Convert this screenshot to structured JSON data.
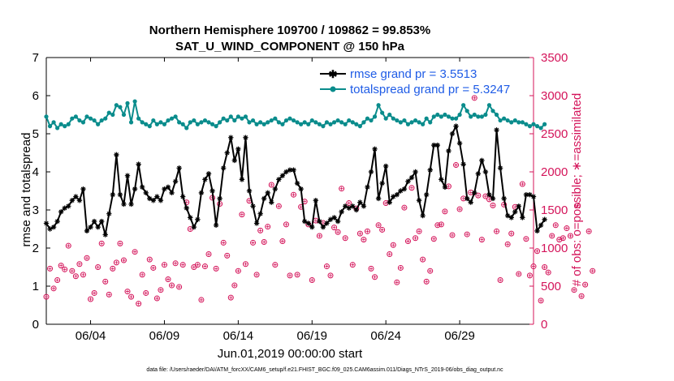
{
  "chart_data": {
    "type": "line",
    "title": "Northern Hemisphere 109700 / 109862 = 99.853%",
    "subtitle": "SAT_U_WIND_COMPONENT @ 150 hPa",
    "xlabel": "Jun.01,2019 00:00:00 start",
    "ylabel_left": "rmse and totalspread",
    "ylabel_right": "# of obs: o=possible; ∗=assimilated",
    "footer": "data file: /Users/raeder/DAI/ATM_forcXX/CAM6_setup/f.e21.FHIST_BGC.f09_025.CAM6assim.011/Diags_NTrS_2019-06/obs_diag_output.nc",
    "xlim": [
      1,
      34
    ],
    "ylim_left": [
      0,
      7
    ],
    "ylim_right": [
      0,
      3500
    ],
    "xticks": [
      {
        "x": 4,
        "label": "06/04"
      },
      {
        "x": 9,
        "label": "06/09"
      },
      {
        "x": 14,
        "label": "06/14"
      },
      {
        "x": 19,
        "label": "06/19"
      },
      {
        "x": 24,
        "label": "06/24"
      },
      {
        "x": 29,
        "label": "06/29"
      }
    ],
    "yticks_left": [
      "0",
      "1",
      "2",
      "3",
      "4",
      "5",
      "6",
      "7"
    ],
    "yticks_right": [
      "0",
      "500",
      "1000",
      "1500",
      "2000",
      "2500",
      "3000",
      "3500"
    ],
    "colors": {
      "rmse": "#000000",
      "spread": "#0a8c8c",
      "obs": "#d4145a",
      "legend_text": "#1f5ce6",
      "axis": "#000000"
    },
    "series": [
      {
        "name": "rmse grand pr = 3.5513",
        "axis": "left",
        "x_start": 1,
        "x_step": 0.25,
        "values": [
          2.65,
          2.5,
          2.55,
          2.7,
          2.95,
          3.05,
          3.1,
          3.25,
          3.35,
          3.25,
          3.55,
          2.45,
          2.55,
          2.7,
          2.55,
          2.7,
          2.35,
          2.9,
          3.4,
          4.45,
          3.4,
          3.15,
          3.9,
          3.15,
          3.55,
          4.2,
          3.6,
          3.45,
          3.3,
          3.25,
          3.35,
          3.25,
          3.55,
          3.6,
          3.45,
          3.75,
          4.1,
          3.35,
          3.05,
          2.8,
          2.55,
          2.75,
          3.45,
          3.8,
          3.95,
          3.5,
          2.6,
          3.3,
          4.1,
          4.5,
          4.9,
          4.3,
          4.6,
          3.8,
          4.9,
          3.5,
          3.1,
          2.65,
          2.9,
          3.3,
          3.45,
          3.2,
          3.55,
          3.8,
          3.9,
          4.0,
          4.05,
          4.05,
          3.7,
          3.55,
          2.7,
          2.65,
          2.55,
          3.25,
          2.7,
          2.55,
          2.65,
          2.75,
          2.8,
          2.7,
          2.95,
          3.1,
          3.05,
          3.1,
          3.0,
          3.2,
          3.1,
          3.6,
          4.0,
          4.6,
          3.3,
          3.7,
          4.15,
          3.2,
          3.35,
          3.4,
          3.5,
          3.55,
          3.75,
          3.85,
          4.0,
          3.25,
          2.85,
          3.4,
          4.05,
          4.7,
          4.7,
          3.8,
          3.6,
          4.55,
          5.0,
          5.2,
          4.75,
          4.2,
          3.3,
          3.2,
          3.45,
          3.95,
          4.3,
          4.0,
          3.4,
          3.3,
          5.1,
          4.1,
          3.3,
          2.85,
          2.8,
          2.95,
          3.1,
          2.8,
          3.4,
          3.4,
          3.35,
          2.45,
          2.6,
          2.75
        ]
      },
      {
        "name": "totalspread grand pr = 5.3247",
        "axis": "left",
        "x_start": 1,
        "x_step": 0.25,
        "values": [
          5.45,
          5.2,
          5.3,
          5.15,
          5.25,
          5.2,
          5.25,
          5.4,
          5.45,
          5.35,
          5.3,
          5.45,
          5.4,
          5.35,
          5.25,
          5.35,
          5.4,
          5.55,
          5.5,
          5.75,
          5.7,
          5.5,
          5.8,
          5.3,
          5.85,
          5.4,
          5.3,
          5.25,
          5.2,
          5.35,
          5.25,
          5.3,
          5.25,
          5.35,
          5.4,
          5.45,
          5.3,
          5.25,
          5.15,
          5.3,
          5.35,
          5.25,
          5.3,
          5.35,
          5.3,
          5.25,
          5.2,
          5.3,
          5.4,
          5.35,
          5.45,
          5.35,
          5.45,
          5.4,
          5.45,
          5.3,
          5.35,
          5.25,
          5.3,
          5.25,
          5.3,
          5.35,
          5.4,
          5.3,
          5.25,
          5.35,
          5.4,
          5.35,
          5.3,
          5.25,
          5.3,
          5.25,
          5.35,
          5.3,
          5.25,
          5.2,
          5.3,
          5.25,
          5.3,
          5.35,
          5.3,
          5.25,
          5.35,
          5.3,
          5.25,
          5.2,
          5.3,
          5.4,
          5.35,
          5.45,
          5.75,
          5.55,
          5.4,
          5.5,
          5.4,
          5.35,
          5.3,
          5.35,
          5.25,
          5.3,
          5.35,
          5.3,
          5.25,
          5.4,
          5.3,
          5.45,
          5.5,
          5.45,
          5.5,
          5.45,
          5.4,
          5.4,
          5.5,
          5.75,
          5.6,
          5.45,
          5.5,
          5.45,
          5.45,
          5.5,
          5.75,
          5.6,
          5.5,
          5.35,
          5.4,
          5.35,
          5.3,
          5.35,
          5.3,
          5.3,
          5.25,
          5.2,
          5.25,
          5.2,
          5.15,
          5.25
        ]
      },
      {
        "name": "# of obs possible/assimilated",
        "axis": "right",
        "x_start": 1,
        "x_step": 0.25,
        "values": [
          360,
          730,
          470,
          580,
          770,
          720,
          1030,
          700,
          630,
          790,
          650,
          870,
          330,
          410,
          750,
          1060,
          560,
          390,
          730,
          810,
          1060,
          840,
          430,
          360,
          950,
          270,
          650,
          410,
          850,
          740,
          340,
          450,
          780,
          590,
          510,
          800,
          490,
          780,
          1600,
          1250,
          750,
          780,
          320,
          760,
          920,
          1660,
          730,
          1580,
          1070,
          900,
          350,
          510,
          700,
          1440,
          790,
          1620,
          1070,
          650,
          1230,
          1080,
          1280,
          1830,
          780,
          1550,
          1090,
          1310,
          640,
          1700,
          650,
          1540,
          1610,
          1310,
          580,
          1360,
          1160,
          1330,
          760,
          640,
          1270,
          1210,
          1780,
          1130,
          1590,
          780,
          1520,
          1190,
          1110,
          1220,
          730,
          620,
          1300,
          1240,
          1590,
          920,
          1040,
          550,
          740,
          1530,
          1090,
          1790,
          1130,
          1220,
          850,
          560,
          700,
          1120,
          1300,
          1310,
          1480,
          1810,
          1170,
          2090,
          1510,
          1650,
          1180,
          1730,
          2970,
          1690,
          1110,
          1680,
          1640,
          1560,
          1220,
          580,
          1570,
          1050,
          1190,
          1540,
          660,
          1840,
          1120,
          640,
          760,
          960,
          310,
          750,
          680,
          1160,
          1300,
          1110,
          1130,
          1260,
          1160,
          450,
          1560,
          370,
          520,
          1220,
          700
        ]
      }
    ],
    "legend": [
      {
        "label": "rmse grand pr = 3.5513",
        "color": "#000000",
        "marker": "asterisk"
      },
      {
        "label": "totalspread grand pr = 5.3247",
        "color": "#0a8c8c",
        "marker": "dot"
      }
    ]
  }
}
